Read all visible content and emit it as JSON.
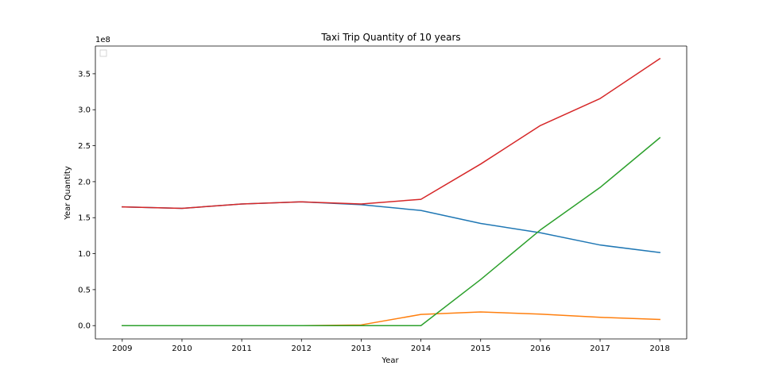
{
  "chart_data": {
    "type": "line",
    "title": "Taxi Trip Quantity of 10 years",
    "xlabel": "Year",
    "ylabel": "Year Quantity",
    "y_offset_label": "1e8",
    "x": [
      2009,
      2010,
      2011,
      2012,
      2013,
      2014,
      2015,
      2016,
      2017,
      2018
    ],
    "x_tick_labels": [
      "2009",
      "2010",
      "2011",
      "2012",
      "2013",
      "2014",
      "2015",
      "2016",
      "2017",
      "2018"
    ],
    "y_ticks": [
      0.0,
      0.5,
      1.0,
      1.5,
      2.0,
      2.5,
      3.0,
      3.5
    ],
    "y_tick_labels": [
      "0.0",
      "0.5",
      "1.0",
      "1.5",
      "2.0",
      "2.5",
      "3.0",
      "3.5"
    ],
    "y_scale": 100000000,
    "ylim": [
      -0.185,
      3.885
    ],
    "xlim": [
      2008.55,
      2018.45
    ],
    "grid": false,
    "legend": {
      "placement": "top-left",
      "entries": []
    },
    "series": [
      {
        "color": "#1f77b4",
        "values": [
          1.65,
          1.63,
          1.69,
          1.72,
          1.68,
          1.6,
          1.42,
          1.29,
          1.12,
          1.015
        ]
      },
      {
        "color": "#ff7f0e",
        "values": [
          0.0,
          0.0,
          0.0,
          0.0,
          0.01,
          0.155,
          0.19,
          0.16,
          0.115,
          0.085
        ]
      },
      {
        "color": "#2ca02c",
        "values": [
          0.0,
          0.0,
          0.0,
          0.0,
          0.0,
          0.0,
          0.64,
          1.33,
          1.92,
          2.61
        ]
      },
      {
        "color": "#d62728",
        "values": [
          1.65,
          1.63,
          1.69,
          1.72,
          1.69,
          1.755,
          2.245,
          2.78,
          3.155,
          3.71
        ]
      }
    ]
  }
}
